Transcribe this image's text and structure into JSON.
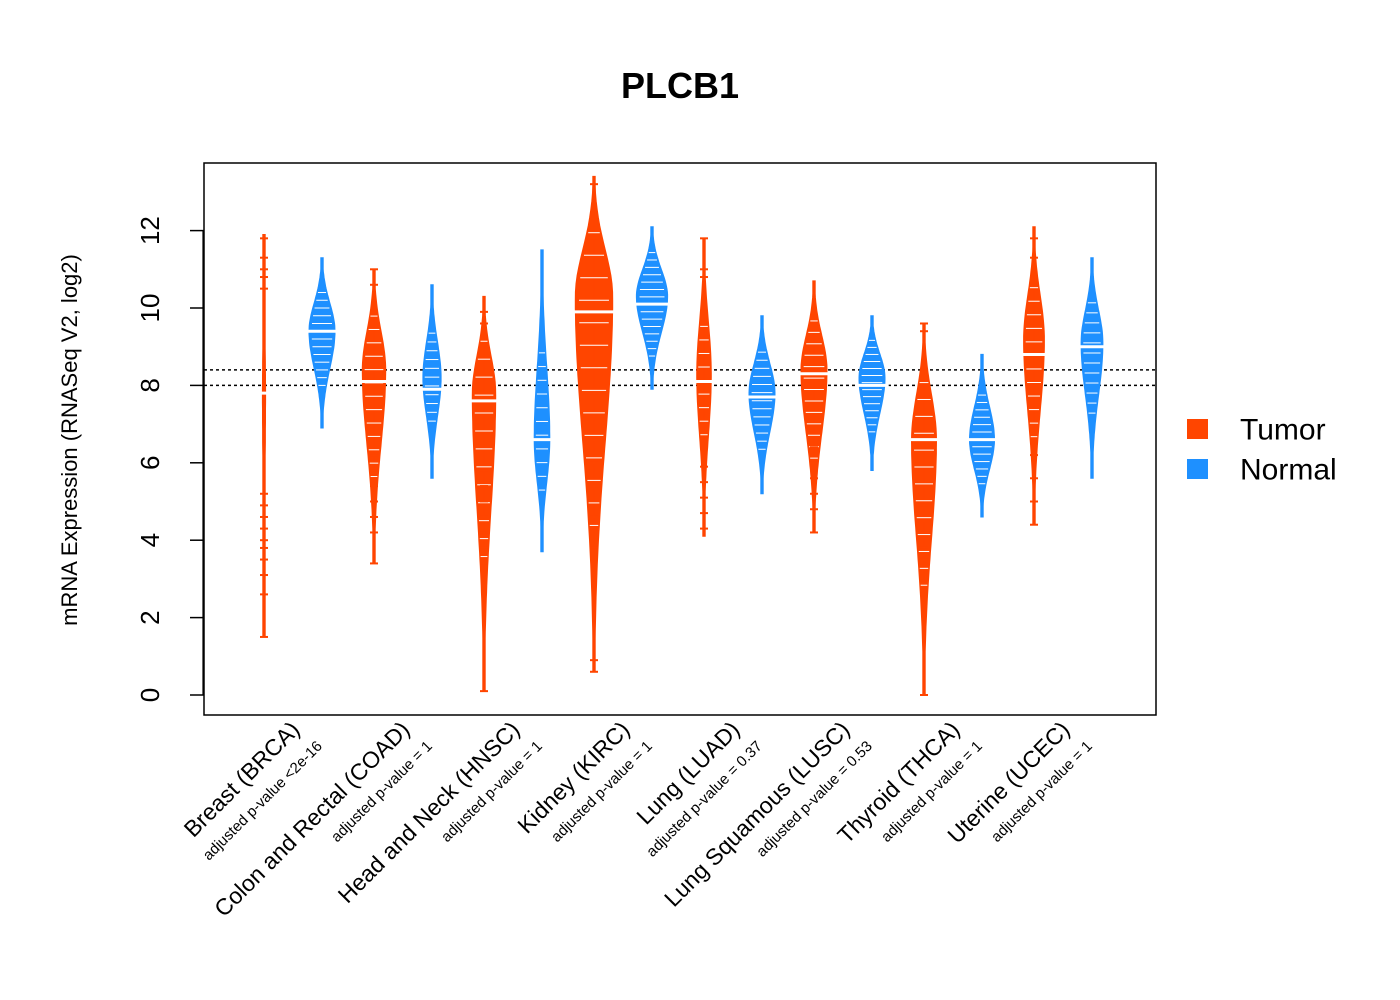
{
  "chart_data": {
    "type": "beanplot",
    "title": "PLCB1",
    "ylabel": "mRNA Expression (RNASeq V2, log2)",
    "xlabel": "",
    "ylim": [
      -0.5,
      13.8
    ],
    "yticks": [
      0,
      2,
      4,
      6,
      8,
      10,
      12
    ],
    "reference_lines": [
      8.0,
      8.4
    ],
    "colors": {
      "Tumor": "#FF4500",
      "Normal": "#1E90FF"
    },
    "legend": [
      {
        "label": "Tumor",
        "color": "#FF4500"
      },
      {
        "label": "Normal",
        "color": "#1E90FF"
      }
    ],
    "categories": [
      {
        "label": "Breast (BRCA)",
        "pvalue": "adjusted p-value <2e-16",
        "tumor": {
          "median": 7.8,
          "min": 1.5,
          "max": 11.9,
          "mode": 7.8,
          "width": 0.06,
          "outliers": [
            1.5,
            2.6,
            3.1,
            3.5,
            3.8,
            4.0,
            4.3,
            4.6,
            4.9,
            5.2,
            10.5,
            10.8,
            11.0,
            11.3,
            11.8
          ]
        },
        "normal": {
          "median": 9.4,
          "min": 6.9,
          "max": 11.3,
          "mode": 9.4,
          "width": 0.5,
          "outliers": []
        }
      },
      {
        "label": "Colon and Rectal (COAD)",
        "pvalue": "adjusted p-value = 1",
        "tumor": {
          "median": 8.1,
          "min": 3.4,
          "max": 11.0,
          "mode": 8.4,
          "width": 0.45,
          "outliers": [
            3.4,
            4.2,
            4.6,
            5.0,
            5.4,
            5.8,
            6.2,
            10.6,
            11.0
          ]
        },
        "normal": {
          "median": 7.9,
          "min": 5.6,
          "max": 10.6,
          "mode": 8.2,
          "width": 0.35,
          "outliers": []
        }
      },
      {
        "label": "Head and Neck (HNSC)",
        "pvalue": "adjusted p-value = 1",
        "tumor": {
          "median": 7.6,
          "min": 0.1,
          "max": 10.3,
          "mode": 7.8,
          "width": 0.45,
          "outliers": [
            0.1,
            3.4,
            3.8,
            4.2,
            4.6,
            5.0,
            5.4,
            5.8,
            9.6,
            9.9
          ]
        },
        "normal": {
          "median": 6.6,
          "min": 3.7,
          "max": 11.5,
          "mode": 6.6,
          "width": 0.3,
          "outliers": []
        }
      },
      {
        "label": "Kidney (KIRC)",
        "pvalue": "adjusted p-value = 1",
        "tumor": {
          "median": 9.9,
          "min": 0.6,
          "max": 13.4,
          "mode": 10.3,
          "width": 0.72,
          "outliers": [
            0.6,
            0.9,
            3.8,
            4.6,
            5.4,
            6.0,
            6.6,
            7.2,
            7.8,
            8.5,
            11.8,
            12.3,
            13.2
          ]
        },
        "normal": {
          "median": 10.1,
          "min": 7.9,
          "max": 12.1,
          "mode": 10.3,
          "width": 0.6,
          "outliers": []
        }
      },
      {
        "label": "Lung (LUAD)",
        "pvalue": "adjusted p-value = 0.37",
        "tumor": {
          "median": 8.1,
          "min": 4.1,
          "max": 11.8,
          "mode": 8.3,
          "width": 0.28,
          "outliers": [
            4.3,
            4.7,
            5.1,
            5.5,
            5.9,
            10.8,
            11.0,
            11.8
          ]
        },
        "normal": {
          "median": 7.7,
          "min": 5.2,
          "max": 9.8,
          "mode": 7.8,
          "width": 0.5,
          "outliers": []
        }
      },
      {
        "label": "Lung Squamous (LUSC)",
        "pvalue": "adjusted p-value = 0.53",
        "tumor": {
          "median": 8.3,
          "min": 4.2,
          "max": 10.7,
          "mode": 8.4,
          "width": 0.5,
          "outliers": [
            4.2,
            4.8,
            5.2,
            5.6,
            6.0,
            6.4,
            6.8
          ]
        },
        "normal": {
          "median": 8.0,
          "min": 5.8,
          "max": 9.8,
          "mode": 8.2,
          "width": 0.5,
          "outliers": []
        }
      },
      {
        "label": "Thyroid (THCA)",
        "pvalue": "adjusted p-value = 1",
        "tumor": {
          "median": 6.6,
          "min": 0.0,
          "max": 9.6,
          "mode": 6.6,
          "width": 0.48,
          "outliers": [
            0.0,
            3.5,
            3.8,
            4.1,
            4.5,
            4.9,
            9.4,
            9.6
          ]
        },
        "normal": {
          "median": 6.6,
          "min": 4.6,
          "max": 8.8,
          "mode": 6.6,
          "width": 0.48,
          "outliers": []
        }
      },
      {
        "label": "Uterine (UCEC)",
        "pvalue": "adjusted p-value = 1",
        "tumor": {
          "median": 8.8,
          "min": 4.4,
          "max": 12.1,
          "mode": 9.2,
          "width": 0.4,
          "outliers": [
            4.4,
            5.0,
            5.6,
            6.2,
            11.3,
            11.8
          ]
        },
        "normal": {
          "median": 9.0,
          "min": 5.6,
          "max": 11.3,
          "mode": 9.1,
          "width": 0.42,
          "outliers": []
        }
      }
    ]
  }
}
